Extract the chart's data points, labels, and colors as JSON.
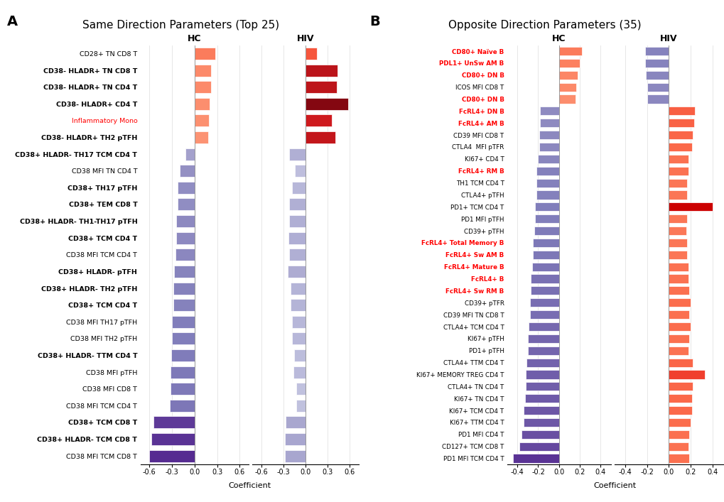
{
  "panel_A_title": "Same Direction Parameters (Top 25)",
  "panel_B_title": "Opposite Direction Parameters (35)",
  "A_labels": [
    "CD28+ TN CD8 T",
    "CD38- HLADR+ TN CD8 T",
    "CD38- HLADR+ TN CD4 T",
    "CD38- HLADR+ CD4 T",
    "Inflammatory Mono",
    "CD38- HLADR+ TH2 pTFH",
    "CD38+ HLADR- TH17 TCM CD4 T",
    "CD38 MFI TN CD4 T",
    "CD38+ TH17 pTFH",
    "CD38+ TEM CD8 T",
    "CD38+ HLADR- TH1-TH17 pTFH",
    "CD38+ TCM CD4 T",
    "CD38 MFI TCM CD4 T",
    "CD38+ HLADR- pTFH",
    "CD38+ HLADR- TH2 pTFH",
    "CD38+ TCM CD4 T",
    "CD38 MFI TH17 pTFH",
    "CD38 MFI TH2 pTFH",
    "CD38+ HLADR- TTM CD4 T",
    "CD38 MFI pTFH",
    "CD38 MFI CD8 T",
    "CD38 MFI TCM CD4 T",
    "CD38+ TCM CD8 T",
    "CD38+ HLADR- TCM CD8 T",
    "CD38 MFI TCM CD8 T"
  ],
  "A_bold": [
    false,
    true,
    true,
    true,
    false,
    true,
    true,
    false,
    true,
    true,
    true,
    true,
    false,
    true,
    true,
    true,
    false,
    false,
    true,
    false,
    false,
    false,
    true,
    true,
    false
  ],
  "A_red_font": [
    false,
    false,
    false,
    false,
    true,
    false,
    false,
    false,
    false,
    false,
    false,
    false,
    false,
    false,
    false,
    false,
    false,
    false,
    false,
    false,
    false,
    false,
    false,
    false,
    false
  ],
  "A_hc_values": [
    0.28,
    0.22,
    0.22,
    0.2,
    0.19,
    0.18,
    -0.12,
    -0.2,
    -0.22,
    -0.22,
    -0.24,
    -0.24,
    -0.25,
    -0.27,
    -0.28,
    -0.28,
    -0.3,
    -0.3,
    -0.31,
    -0.32,
    -0.32,
    -0.33,
    -0.55,
    -0.57,
    -0.6
  ],
  "A_hiv_values": [
    0.15,
    0.43,
    0.42,
    0.58,
    0.36,
    0.4,
    -0.22,
    -0.14,
    -0.18,
    -0.22,
    -0.22,
    -0.23,
    -0.22,
    -0.24,
    -0.2,
    -0.2,
    -0.18,
    -0.18,
    -0.15,
    -0.16,
    -0.12,
    -0.12,
    -0.27,
    -0.28,
    -0.28
  ],
  "B_labels": [
    "CD80+ Naïve B",
    "PDL1+ UnSw AM B",
    "CD80+ DN B",
    "ICOS MFI CD8 T",
    "CD80+ DN B",
    "FcRL4+ DN B",
    "FcRL4+ AM B",
    "CD39 MFI CD8 T",
    "CTLA4  MFI pTFR",
    "KI67+ CD4 T",
    "FcRL4+ RM B",
    "TH1 TCM CD4 T",
    "CTLA4+ pTFH",
    "PD1+ TCM CD4 T",
    "PD1 MFI pTFH",
    "CD39+ pTFH",
    "FcRL4+ Total Memory B",
    "FcRL4+ Sw AM B",
    "FcRL4+ Mature B",
    "FcRL4+ B",
    "FcRL4+ Sw RM B",
    "CD39+ pTFR",
    "CD39 MFI TN CD8 T",
    "CTLA4+ TCM CD4 T",
    "KI67+ pTFH",
    "PD1+ pTFH",
    "CTLA4+ TTM CD4 T",
    "KI67+ MEMORY TREG CD4 T",
    "CTLA4+ TN CD4 T",
    "KI67+ TN CD4 T",
    "KI67+ TCM CD4 T",
    "KI67+ TTM CD4 T",
    "PD1 MFI CD4 T",
    "CD127+ TCM CD8 T",
    "PD1 MFI TCM CD4 T"
  ],
  "B_bold": [
    true,
    true,
    true,
    false,
    true,
    true,
    true,
    false,
    false,
    false,
    true,
    false,
    false,
    false,
    false,
    false,
    true,
    true,
    true,
    true,
    true,
    false,
    false,
    false,
    false,
    false,
    false,
    false,
    false,
    false,
    false,
    false,
    false,
    false,
    false
  ],
  "B_red_font": [
    true,
    true,
    true,
    false,
    true,
    true,
    true,
    false,
    false,
    false,
    true,
    false,
    false,
    false,
    false,
    false,
    true,
    true,
    true,
    true,
    true,
    false,
    false,
    false,
    false,
    false,
    false,
    false,
    false,
    false,
    false,
    false,
    false,
    false,
    false
  ],
  "B_hc_values": [
    0.22,
    0.2,
    0.18,
    0.17,
    0.16,
    -0.18,
    -0.18,
    -0.19,
    -0.19,
    -0.2,
    -0.22,
    -0.22,
    -0.22,
    -0.23,
    -0.23,
    -0.24,
    -0.25,
    -0.25,
    -0.26,
    -0.27,
    -0.27,
    -0.28,
    -0.28,
    -0.29,
    -0.3,
    -0.3,
    -0.31,
    -0.32,
    -0.32,
    -0.33,
    -0.34,
    -0.34,
    -0.36,
    -0.38,
    -0.44
  ],
  "B_hiv_values": [
    -0.22,
    -0.22,
    -0.21,
    -0.2,
    -0.2,
    0.24,
    0.23,
    0.22,
    0.21,
    0.18,
    0.18,
    0.17,
    0.17,
    0.4,
    0.17,
    0.16,
    0.17,
    0.17,
    0.18,
    0.18,
    0.19,
    0.2,
    0.19,
    0.2,
    0.19,
    0.18,
    0.22,
    0.33,
    0.22,
    0.21,
    0.21,
    0.2,
    0.19,
    0.18,
    0.19
  ],
  "B_hiv_special": [
    false,
    false,
    false,
    false,
    false,
    false,
    false,
    false,
    false,
    false,
    false,
    false,
    false,
    true,
    false,
    false,
    false,
    false,
    false,
    false,
    false,
    false,
    false,
    false,
    false,
    false,
    false,
    false,
    false,
    false,
    false,
    false,
    false,
    false,
    false
  ]
}
